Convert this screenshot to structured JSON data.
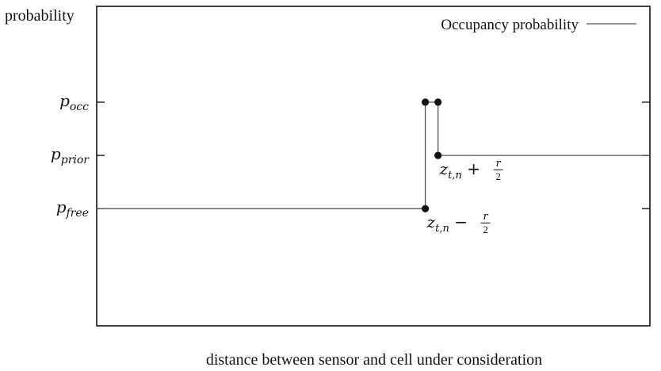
{
  "chart_data": {
    "type": "line",
    "ylabel": "probability",
    "xlabel": "distance between sensor and cell under consideration",
    "legend": {
      "position": "top-right"
    },
    "grid": false,
    "xlim": [
      0,
      10
    ],
    "ylim": [
      0,
      6
    ],
    "y_ticks": [
      {
        "id": "free",
        "value": 2.2,
        "label_main": "p",
        "label_sub": "free"
      },
      {
        "id": "prior",
        "value": 3.2,
        "label_main": "p",
        "label_sub": "prior"
      },
      {
        "id": "occ",
        "value": 4.2,
        "label_main": "p",
        "label_sub": "occ"
      }
    ],
    "series": [
      {
        "name": "Occupancy probability",
        "color": "#555555",
        "points": [
          {
            "x": 0,
            "y": 2.2
          },
          {
            "x": 5.94,
            "y": 2.2
          },
          {
            "x": 5.94,
            "y": 4.2
          },
          {
            "x": 6.17,
            "y": 4.2
          },
          {
            "x": 6.17,
            "y": 3.2
          },
          {
            "x": 10,
            "y": 3.2
          }
        ]
      }
    ],
    "markers": [
      {
        "x": 5.94,
        "y": 2.2
      },
      {
        "x": 5.94,
        "y": 4.2
      },
      {
        "x": 6.17,
        "y": 4.2
      },
      {
        "x": 6.17,
        "y": 3.2
      }
    ],
    "annotations": [
      {
        "id": "plus",
        "x": 6.17,
        "y": 3.2,
        "base": "z",
        "sub": "t,n",
        "op": "+",
        "frac_num": "r",
        "frac_den": "2"
      },
      {
        "id": "minus",
        "x": 5.94,
        "y": 2.2,
        "base": "z",
        "sub": "t,n",
        "op": "−",
        "frac_num": "r",
        "frac_den": "2"
      }
    ]
  }
}
